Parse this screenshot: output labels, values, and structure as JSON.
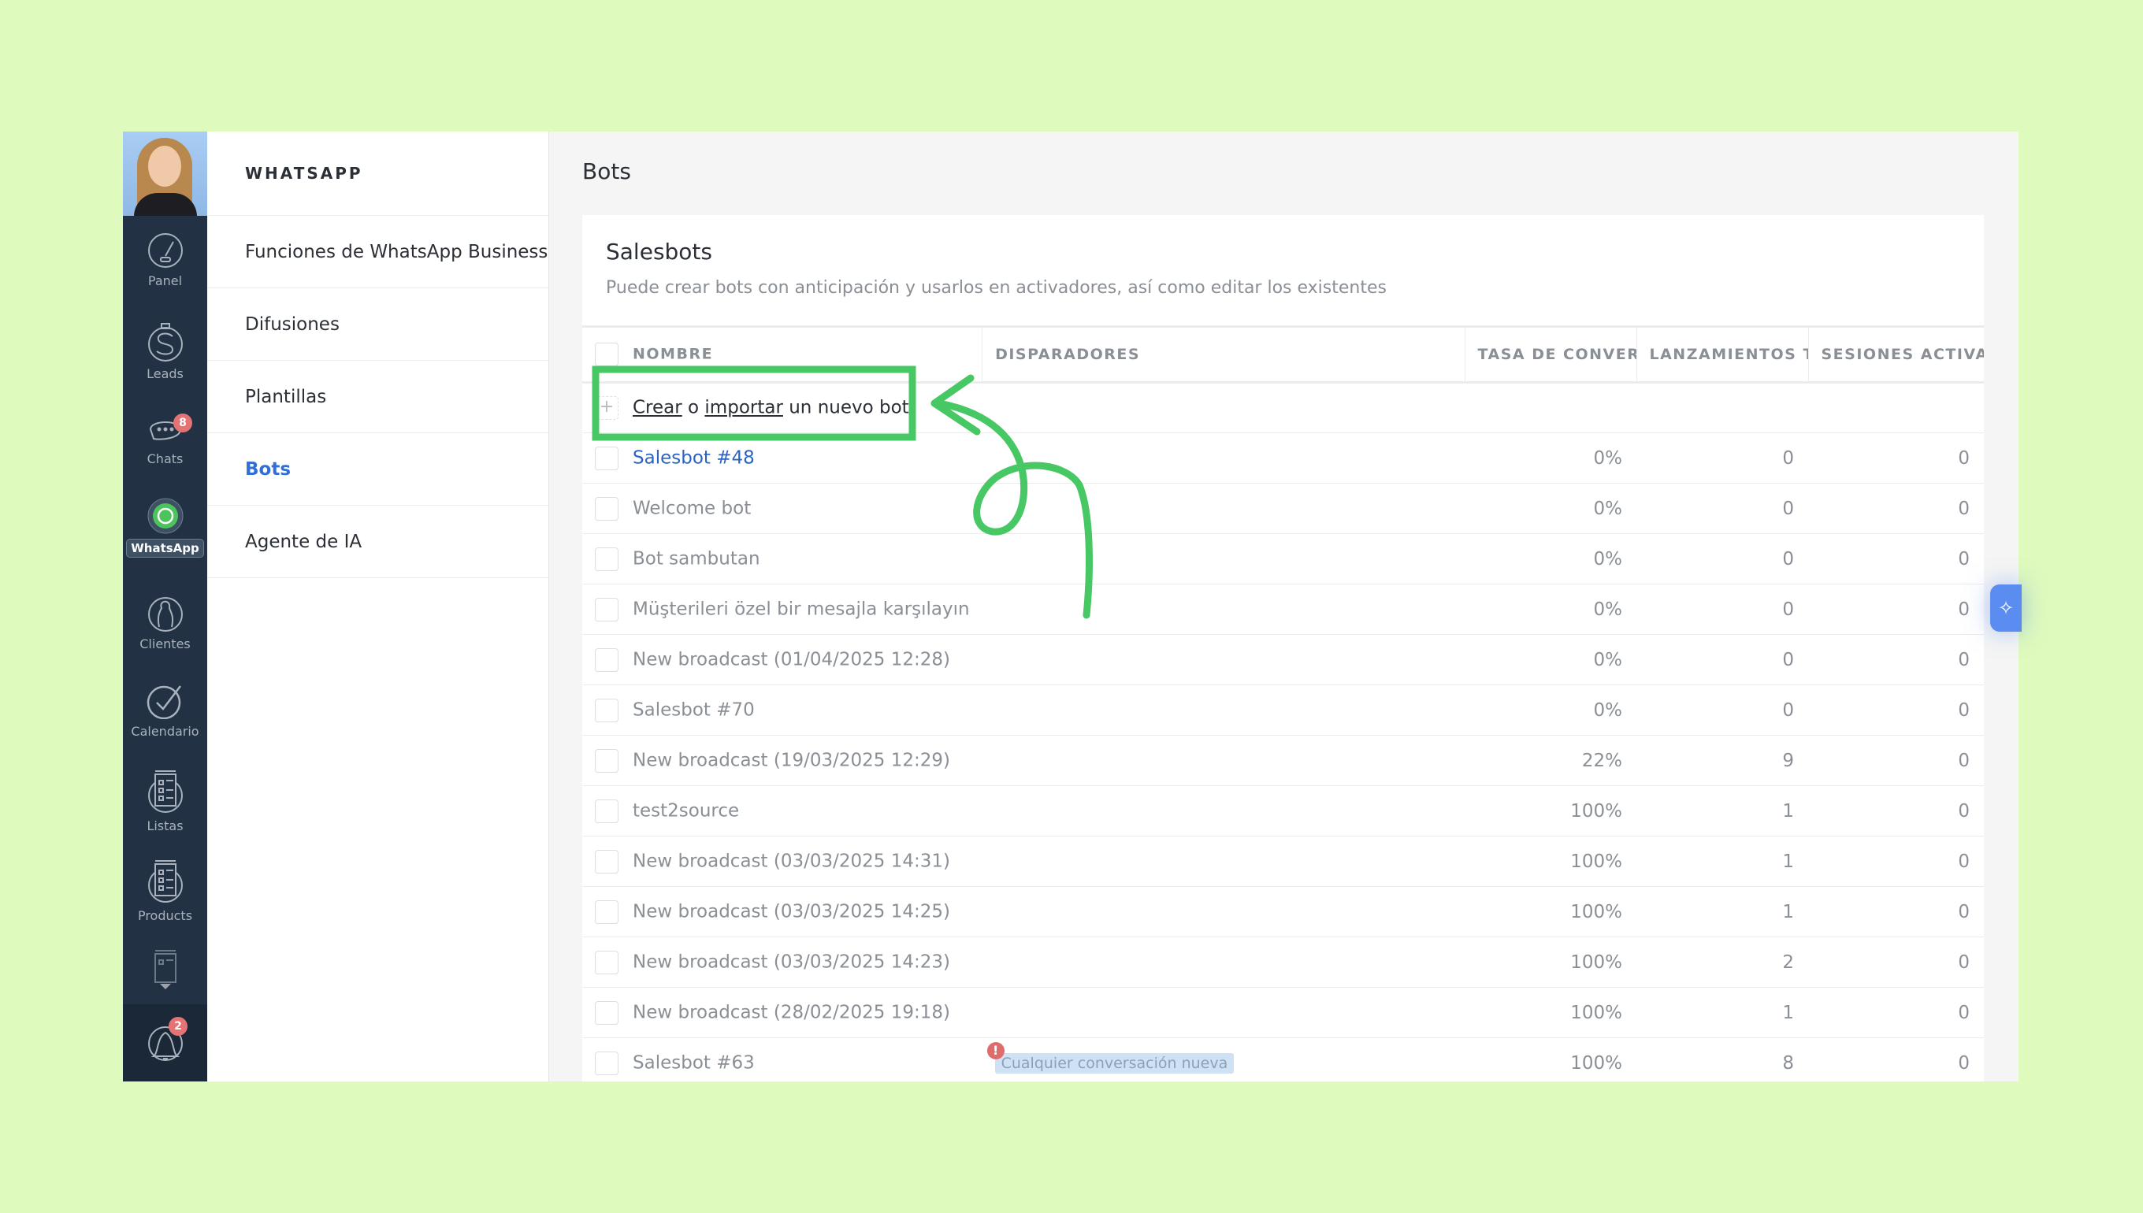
{
  "nav": {
    "items": [
      {
        "label": "Panel",
        "icon": "speedometer-icon"
      },
      {
        "label": "Leads",
        "icon": "dollar-icon"
      },
      {
        "label": "Chats",
        "icon": "chat-icon",
        "badge": "8"
      },
      {
        "label": "WhatsApp",
        "icon": "whatsapp-icon"
      },
      {
        "label": "Clientes",
        "icon": "contacts-icon"
      },
      {
        "label": "Calendario",
        "icon": "check-icon"
      },
      {
        "label": "Listas",
        "icon": "list-icon"
      },
      {
        "label": "Products",
        "icon": "list-icon"
      }
    ],
    "notifications_badge": "2"
  },
  "submenu": {
    "title": "WHATSAPP",
    "items": [
      {
        "label": "Funciones de WhatsApp Business"
      },
      {
        "label": "Difusiones"
      },
      {
        "label": "Plantillas"
      },
      {
        "label": "Bots",
        "active": true
      },
      {
        "label": "Agente de IA"
      }
    ]
  },
  "page": {
    "title": "Bots"
  },
  "salesbots": {
    "title": "Salesbots",
    "description": "Puede crear bots con anticipación y usarlos en activadores, así como editar los existentes",
    "columns": [
      "NOMBRE",
      "DISPARADORES",
      "TASA DE CONVERSIÓN",
      "LANZAMIENTOS T",
      "SESIONES ACTIVAS"
    ],
    "create": {
      "create_link": "Crear",
      "or": "o",
      "import_link": "importar",
      "suffix": "un nuevo bot"
    },
    "rows": [
      {
        "name": "Salesbot #48",
        "trigger": "",
        "rate": "0%",
        "launches": "0",
        "sessions": "0"
      },
      {
        "name": "Welcome bot",
        "trigger": "",
        "rate": "0%",
        "launches": "0",
        "sessions": "0"
      },
      {
        "name": "Bot sambutan",
        "trigger": "",
        "rate": "0%",
        "launches": "0",
        "sessions": "0"
      },
      {
        "name": "Müşterileri özel bir mesajla karşılayın",
        "trigger": "",
        "rate": "0%",
        "launches": "0",
        "sessions": "0"
      },
      {
        "name": "New broadcast (01/04/2025 12:28)",
        "trigger": "",
        "rate": "0%",
        "launches": "0",
        "sessions": "0"
      },
      {
        "name": "Salesbot #70",
        "trigger": "",
        "rate": "0%",
        "launches": "0",
        "sessions": "0"
      },
      {
        "name": "New broadcast (19/03/2025 12:29)",
        "trigger": "",
        "rate": "22%",
        "launches": "9",
        "sessions": "0"
      },
      {
        "name": "test2source",
        "trigger": "",
        "rate": "100%",
        "launches": "1",
        "sessions": "0"
      },
      {
        "name": "New broadcast (03/03/2025 14:31)",
        "trigger": "",
        "rate": "100%",
        "launches": "1",
        "sessions": "0"
      },
      {
        "name": "New broadcast (03/03/2025 14:25)",
        "trigger": "",
        "rate": "100%",
        "launches": "1",
        "sessions": "0"
      },
      {
        "name": "New broadcast (03/03/2025 14:23)",
        "trigger": "",
        "rate": "100%",
        "launches": "2",
        "sessions": "0"
      },
      {
        "name": "New broadcast (28/02/2025 19:18)",
        "trigger": "",
        "rate": "100%",
        "launches": "1",
        "sessions": "0"
      },
      {
        "name": "Salesbot #63",
        "trigger": "Cualquier conversación nueva",
        "rate": "100%",
        "launches": "8",
        "sessions": "0"
      }
    ]
  },
  "ai_button": {
    "icon": "sparkles-icon"
  },
  "annotation": {
    "color": "#47c864"
  },
  "colors": {
    "background": "#dffabd",
    "nav": "#223244",
    "accent": "#2f6fd6",
    "badge": "#e57373"
  }
}
